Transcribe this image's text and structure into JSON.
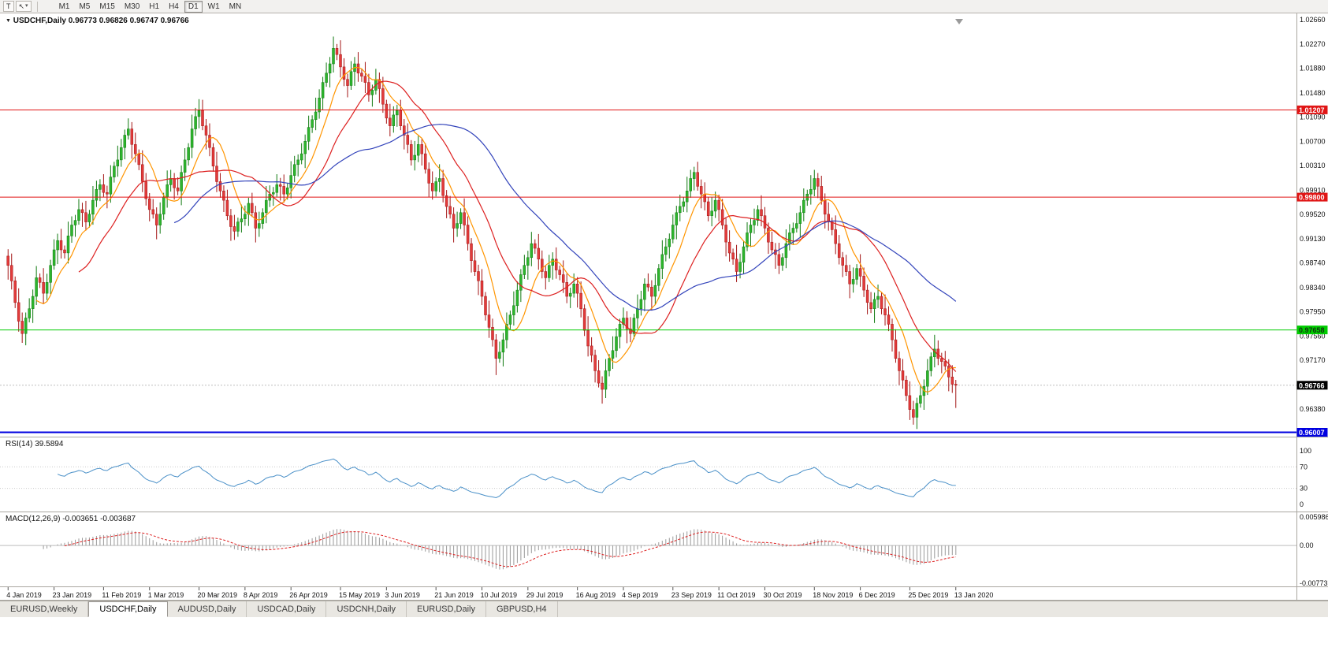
{
  "icons": {
    "collapse": "▼",
    "text_tool": "T",
    "cursor_tool": "↖",
    "dropdown": "▾",
    "shift_marker": "triangle-down"
  },
  "toolbar": {
    "timeframes": [
      "M1",
      "M5",
      "M15",
      "M30",
      "H1",
      "H4",
      "D1",
      "W1",
      "MN"
    ],
    "active_timeframe": "D1"
  },
  "chart": {
    "title": {
      "symbol_period": "USDCHF,Daily",
      "o": "0.96773",
      "h": "0.96826",
      "l": "0.96747",
      "c": "0.96766"
    },
    "price_scale": {
      "ticks": [
        "1.02660",
        "1.02270",
        "1.01880",
        "1.01480",
        "1.01090",
        "1.00700",
        "1.00310",
        "0.99910",
        "0.99520",
        "0.99130",
        "0.98740",
        "0.98340",
        "0.97950",
        "0.97560",
        "0.97170",
        "0.96380"
      ]
    },
    "levels": [
      {
        "price": 1.01207,
        "label": "1.01207",
        "color": "#e01515",
        "text": "#ffffff",
        "width": 1
      },
      {
        "price": 0.998,
        "label": "0.99800",
        "color": "#e01515",
        "text": "#ffffff",
        "width": 1
      },
      {
        "price": 0.97658,
        "label": "0.97658",
        "color": "#00cc00",
        "text": "#103310",
        "width": 1
      },
      {
        "price": 0.96007,
        "label": "0.96007",
        "color": "#0000e0",
        "text": "#ffffff",
        "width": 2
      }
    ],
    "current_price": {
      "value": 0.96766,
      "label": "0.96766",
      "bg": "#000000",
      "text": "#ffffff"
    },
    "colors": {
      "bull": "#2db52d",
      "bull_border": "#117a11",
      "bear": "#e23b3b",
      "bear_border": "#a31515",
      "macd_hist": "#9a9a9a",
      "macd_signal": "#dd2020",
      "grid": "#bdbdbd"
    }
  },
  "chart_data": {
    "type": "candlestick",
    "symbol": "USDCHF",
    "period": "Daily",
    "ohlc_current": [
      0.96773,
      0.96826,
      0.96747,
      0.96766
    ],
    "x_labels": [
      "4 Jan 2019",
      "23 Jan 2019",
      "11 Feb 2019",
      "1 Mar 2019",
      "20 Mar 2019",
      "8 Apr 2019",
      "26 Apr 2019",
      "15 May 2019",
      "3 Jun 2019",
      "21 Jun 2019",
      "10 Jul 2019",
      "29 Jul 2019",
      "16 Aug 2019",
      "4 Sep 2019",
      "23 Sep 2019",
      "11 Oct 2019",
      "30 Oct 2019",
      "18 Nov 2019",
      "6 Dec 2019",
      "25 Dec 2019",
      "13 Jan 2020"
    ],
    "y_domain": [
      0.9595,
      1.027
    ],
    "closes": [
      0.987,
      0.981,
      0.976,
      0.98,
      0.985,
      0.9825,
      0.987,
      0.991,
      0.989,
      0.9935,
      0.996,
      0.994,
      0.9975,
      1.0,
      0.9985,
      1.003,
      1.006,
      1.009,
      1.005,
      1.0005,
      0.996,
      0.9935,
      0.998,
      1.001,
      0.999,
      1.004,
      1.009,
      1.012,
      1.008,
      1.003,
      0.999,
      0.995,
      0.9925,
      0.9945,
      0.997,
      0.993,
      0.9955,
      0.9985,
      1.0,
      0.9985,
      1.0015,
      1.004,
      1.007,
      1.0105,
      1.014,
      1.018,
      1.022,
      1.019,
      1.016,
      1.0195,
      1.0175,
      1.0145,
      1.017,
      1.013,
      1.0095,
      1.012,
      1.008,
      1.004,
      1.0065,
      1.0025,
      0.999,
      1.001,
      0.9965,
      0.993,
      0.9955,
      0.9905,
      0.986,
      0.982,
      0.977,
      0.972,
      0.975,
      0.979,
      0.983,
      0.987,
      0.9905,
      0.988,
      0.985,
      0.988,
      0.9855,
      0.982,
      0.984,
      0.98,
      0.974,
      0.97,
      0.967,
      0.972,
      0.9755,
      0.9785,
      0.976,
      0.98,
      0.984,
      0.982,
      0.9865,
      0.99,
      0.9935,
      0.9965,
      0.999,
      1.002,
      0.9985,
      0.995,
      0.9975,
      0.9935,
      0.989,
      0.986,
      0.99,
      0.9935,
      0.996,
      0.993,
      0.9895,
      0.987,
      0.9905,
      0.993,
      0.9955,
      0.9985,
      1.001,
      0.9975,
      0.994,
      0.9905,
      0.987,
      0.984,
      0.9865,
      0.983,
      0.98,
      0.982,
      0.979,
      0.975,
      0.97,
      0.966,
      0.9625,
      0.966,
      0.97,
      0.9735,
      0.9715,
      0.969,
      0.96766
    ],
    "spike_highs": {
      "18": 1.0098,
      "28": 1.0138,
      "47": 1.0226,
      "50": 1.0205,
      "98": 1.0028,
      "115": 1.0023
    },
    "spike_lows": {
      "3": 0.9745,
      "33": 0.9916,
      "70": 0.9693,
      "85": 0.9659,
      "104": 0.9845,
      "129": 0.9613,
      "135": 0.964
    },
    "wick_pattern": [
      0.0011,
      0.0019,
      0.0007,
      0.0023,
      0.0014,
      0.0009,
      0.0017
    ],
    "moving_averages": [
      {
        "name": "fast",
        "window": 9,
        "color": "#ff9500"
      },
      {
        "name": "medium",
        "window": 21,
        "color": "#dd2020"
      },
      {
        "name": "slow",
        "window": 48,
        "color": "#3344bb"
      }
    ]
  },
  "rsi": {
    "label": "RSI(14)",
    "period": 14,
    "value": "39.5894",
    "color": "#4a90c8",
    "levels": [
      70,
      30
    ],
    "scale": [
      "100",
      "70",
      "30",
      "0"
    ]
  },
  "macd": {
    "label": "MACD(12,26,9)",
    "fast": 12,
    "slow": 26,
    "signal": 9,
    "value_main": "-0.003651",
    "value_signal": "-0.003687",
    "scale_top": "0.005986",
    "scale_zero": "0.00",
    "scale_bottom": "-0.007737"
  },
  "tabs": {
    "items": [
      "EURUSD,Weekly",
      "USDCHF,Daily",
      "AUDUSD,Daily",
      "USDCAD,Daily",
      "USDCNH,Daily",
      "EURUSD,Daily",
      "GBPUSD,H4"
    ],
    "active_index": 1
  }
}
